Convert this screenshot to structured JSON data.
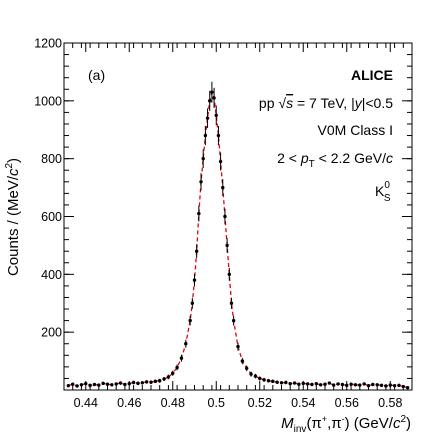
{
  "chart_data": {
    "type": "scatter",
    "panel_tag": "(a)",
    "experiment": "ALICE",
    "annotations": {
      "line1": {
        "pre": "pp ",
        "sqrt": "√",
        "s": "s",
        "mid": " = 7 TeV, |",
        "y": "y",
        "post": "|<0.5"
      },
      "line2": "V0M Class I",
      "line3": {
        "pre": "2 < ",
        "p": "p",
        "sub": "T",
        "post": " < 2.2 GeV/",
        "c": "c"
      },
      "particle": {
        "base": "K",
        "sup": "0",
        "sub": "S"
      }
    },
    "ylabel": {
      "pre": "Counts / (MeV/",
      "c": "c",
      "sup": "2",
      "post": ")"
    },
    "xlabel": {
      "m": "M",
      "sub": "inv",
      "mid": "(π",
      "plus": "+",
      "comma": ",π",
      "minus": "-",
      "unit": ") (GeV/",
      "c": "c",
      "sup": "2",
      "close": ")"
    },
    "xlim": [
      0.43,
      0.59
    ],
    "ylim": [
      0,
      1200
    ],
    "x_ticks": [
      0.44,
      0.46,
      0.48,
      0.5,
      0.52,
      0.54,
      0.56,
      0.58
    ],
    "x_tick_labels": [
      "0.44",
      "0.46",
      "0.48",
      "0.5",
      "0.52",
      "0.54",
      "0.56",
      "0.58"
    ],
    "y_ticks": [
      200,
      400,
      600,
      800,
      1000,
      1200
    ],
    "y_tick_labels": [
      "200",
      "400",
      "600",
      "800",
      "1000",
      "1200"
    ],
    "fit": {
      "color": "#e8000b",
      "style": "dashed"
    },
    "marker_color": "#000000",
    "x": [
      0.432,
      0.434,
      0.436,
      0.438,
      0.44,
      0.442,
      0.444,
      0.446,
      0.448,
      0.45,
      0.452,
      0.454,
      0.456,
      0.458,
      0.46,
      0.462,
      0.464,
      0.466,
      0.468,
      0.47,
      0.472,
      0.474,
      0.476,
      0.478,
      0.48,
      0.482,
      0.484,
      0.486,
      0.488,
      0.489,
      0.49,
      0.491,
      0.492,
      0.493,
      0.494,
      0.495,
      0.496,
      0.497,
      0.498,
      0.499,
      0.5,
      0.501,
      0.502,
      0.503,
      0.504,
      0.505,
      0.506,
      0.507,
      0.508,
      0.51,
      0.512,
      0.514,
      0.516,
      0.518,
      0.52,
      0.522,
      0.524,
      0.526,
      0.528,
      0.53,
      0.532,
      0.534,
      0.536,
      0.538,
      0.54,
      0.542,
      0.544,
      0.546,
      0.548,
      0.55,
      0.552,
      0.554,
      0.556,
      0.558,
      0.56,
      0.562,
      0.564,
      0.566,
      0.568,
      0.57,
      0.572,
      0.574,
      0.576,
      0.578,
      0.58,
      0.582,
      0.584,
      0.586,
      0.588
    ],
    "y": [
      15,
      20,
      14,
      18,
      22,
      16,
      19,
      17,
      23,
      20,
      18,
      21,
      24,
      19,
      22,
      26,
      23,
      25,
      28,
      27,
      30,
      32,
      38,
      45,
      58,
      78,
      110,
      160,
      240,
      300,
      380,
      480,
      610,
      720,
      800,
      880,
      940,
      1000,
      1030,
      1010,
      950,
      880,
      790,
      700,
      600,
      500,
      400,
      300,
      240,
      150,
      100,
      75,
      55,
      48,
      40,
      35,
      32,
      30,
      27,
      25,
      26,
      22,
      24,
      20,
      23,
      21,
      19,
      22,
      18,
      20,
      24,
      17,
      21,
      19,
      16,
      20,
      18,
      17,
      21,
      15,
      19,
      18,
      16,
      14,
      17,
      15,
      16,
      12,
      8
    ],
    "err": [
      5,
      5,
      5,
      5,
      5,
      5,
      5,
      5,
      5,
      5,
      5,
      5,
      6,
      5,
      6,
      6,
      6,
      6,
      6,
      6,
      6,
      7,
      7,
      8,
      9,
      10,
      12,
      14,
      17,
      19,
      21,
      24,
      27,
      30,
      32,
      33,
      34,
      35,
      36,
      35,
      34,
      33,
      31,
      29,
      27,
      25,
      22,
      19,
      17,
      14,
      11,
      10,
      9,
      8,
      7,
      7,
      6,
      6,
      6,
      6,
      6,
      5,
      5,
      5,
      5,
      5,
      5,
      5,
      5,
      5,
      5,
      5,
      5,
      5,
      5,
      5,
      5,
      5,
      5,
      5,
      5,
      5,
      5,
      5,
      5,
      5,
      5,
      5,
      5
    ]
  }
}
